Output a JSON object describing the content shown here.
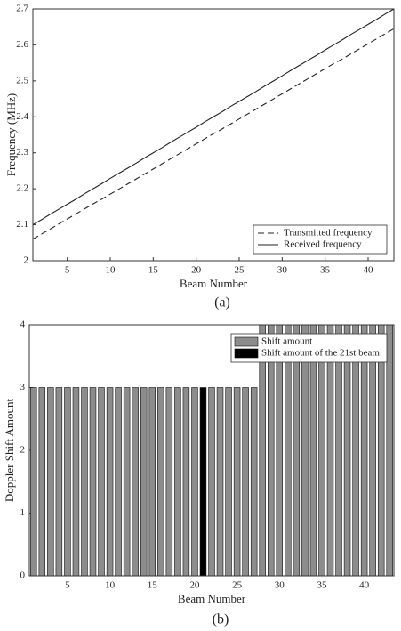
{
  "chart_data": [
    {
      "type": "line",
      "caption": "(a)",
      "x_label": "Beam Number",
      "y_label": "Frequency (MHz)",
      "x": [
        1,
        2,
        3,
        4,
        5,
        6,
        7,
        8,
        9,
        10,
        11,
        12,
        13,
        14,
        15,
        16,
        17,
        18,
        19,
        20,
        21,
        22,
        23,
        24,
        25,
        26,
        27,
        28,
        29,
        30,
        31,
        32,
        33,
        34,
        35,
        36,
        37,
        38,
        39,
        40,
        41,
        42,
        43
      ],
      "series": [
        {
          "name": "Transmitted frequency",
          "color": "#222222",
          "line_style": "dashed",
          "values": [
            2.06,
            2.074,
            2.088,
            2.102,
            2.116,
            2.13,
            2.144,
            2.158,
            2.171,
            2.185,
            2.199,
            2.213,
            2.227,
            2.241,
            2.255,
            2.269,
            2.283,
            2.297,
            2.311,
            2.325,
            2.339,
            2.353,
            2.366,
            2.38,
            2.394,
            2.408,
            2.422,
            2.436,
            2.45,
            2.464,
            2.478,
            2.492,
            2.506,
            2.52,
            2.534,
            2.548,
            2.561,
            2.575,
            2.589,
            2.603,
            2.617,
            2.631,
            2.645
          ]
        },
        {
          "name": "Received frequency",
          "color": "#222222",
          "line_style": "solid",
          "values": [
            2.1,
            2.114,
            2.129,
            2.143,
            2.157,
            2.171,
            2.186,
            2.2,
            2.214,
            2.229,
            2.243,
            2.257,
            2.271,
            2.286,
            2.3,
            2.314,
            2.329,
            2.343,
            2.357,
            2.371,
            2.386,
            2.4,
            2.414,
            2.429,
            2.443,
            2.457,
            2.471,
            2.486,
            2.5,
            2.514,
            2.529,
            2.543,
            2.557,
            2.571,
            2.586,
            2.6,
            2.614,
            2.629,
            2.643,
            2.657,
            2.671,
            2.686,
            2.7
          ]
        }
      ],
      "xlim": [
        1,
        43
      ],
      "xticks": [
        5,
        10,
        15,
        20,
        25,
        30,
        35,
        40
      ],
      "ylim": [
        2,
        2.7
      ],
      "yticks": [
        2,
        2.1,
        2.2,
        2.3,
        2.4,
        2.5,
        2.6,
        2.7
      ],
      "legend": "lower right"
    },
    {
      "type": "bar",
      "caption": "(b)",
      "x_label": "Beam Number",
      "y_label": "Doppler Shift Amount",
      "x": [
        1,
        2,
        3,
        4,
        5,
        6,
        7,
        8,
        9,
        10,
        11,
        12,
        13,
        14,
        15,
        16,
        17,
        18,
        19,
        20,
        21,
        22,
        23,
        24,
        25,
        26,
        27,
        28,
        29,
        30,
        31,
        32,
        33,
        34,
        35,
        36,
        37,
        38,
        39,
        40,
        41,
        42,
        43
      ],
      "series": [
        {
          "name": "Shift amount",
          "color": "#8c8c8c",
          "values": [
            3,
            3,
            3,
            3,
            3,
            3,
            3,
            3,
            3,
            3,
            3,
            3,
            3,
            3,
            3,
            3,
            3,
            3,
            3,
            3,
            null,
            3,
            3,
            3,
            3,
            3,
            3,
            4,
            4,
            4,
            4,
            4,
            4,
            4,
            4,
            4,
            4,
            4,
            4,
            4,
            4,
            4,
            4
          ]
        },
        {
          "name": "Shift amount of the 21st beam",
          "color": "#000000",
          "values": [
            null,
            null,
            null,
            null,
            null,
            null,
            null,
            null,
            null,
            null,
            null,
            null,
            null,
            null,
            null,
            null,
            null,
            null,
            null,
            null,
            3,
            null,
            null,
            null,
            null,
            null,
            null,
            null,
            null,
            null,
            null,
            null,
            null,
            null,
            null,
            null,
            null,
            null,
            null,
            null,
            null,
            null,
            null
          ]
        }
      ],
      "xlim": [
        0.5,
        43.5
      ],
      "xticks": [
        5,
        10,
        15,
        20,
        25,
        30,
        35,
        40
      ],
      "ylim": [
        0,
        4
      ],
      "yticks": [
        0,
        1,
        2,
        3,
        4
      ],
      "legend": "upper right"
    }
  ]
}
